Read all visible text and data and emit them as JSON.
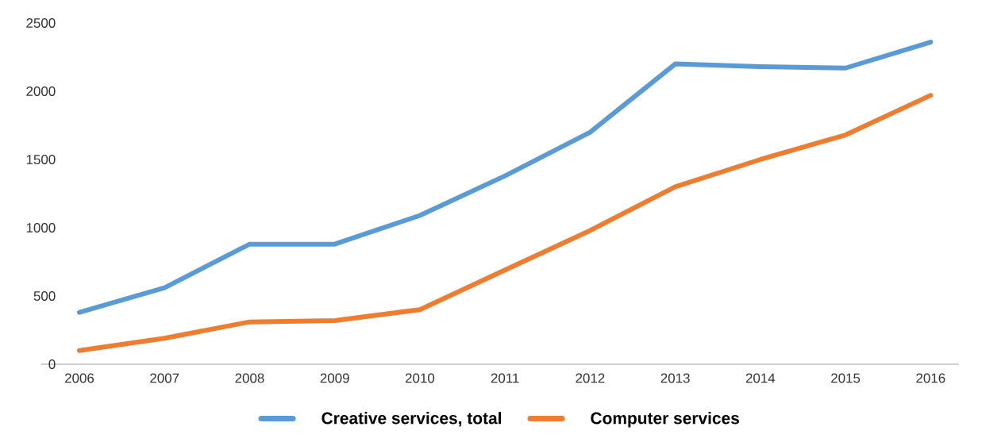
{
  "chart_data": {
    "type": "line",
    "categories": [
      "2006",
      "2007",
      "2008",
      "2009",
      "2010",
      "2011",
      "2012",
      "2013",
      "2014",
      "2015",
      "2016"
    ],
    "series": [
      {
        "name": "Creative services, total",
        "color": "#5b9bd5",
        "values": [
          380,
          560,
          880,
          880,
          1090,
          1380,
          1700,
          2200,
          2180,
          2170,
          2360
        ]
      },
      {
        "name": "Computer services",
        "color": "#ed7d31",
        "values": [
          100,
          190,
          310,
          320,
          400,
          690,
          980,
          1300,
          1500,
          1680,
          1970
        ]
      }
    ],
    "ylim": [
      0,
      2500
    ],
    "yticks": [
      0,
      500,
      1000,
      1500,
      2000,
      2500
    ],
    "grid": false,
    "legend": "bottom",
    "marker": "none",
    "line_style": "solid"
  }
}
